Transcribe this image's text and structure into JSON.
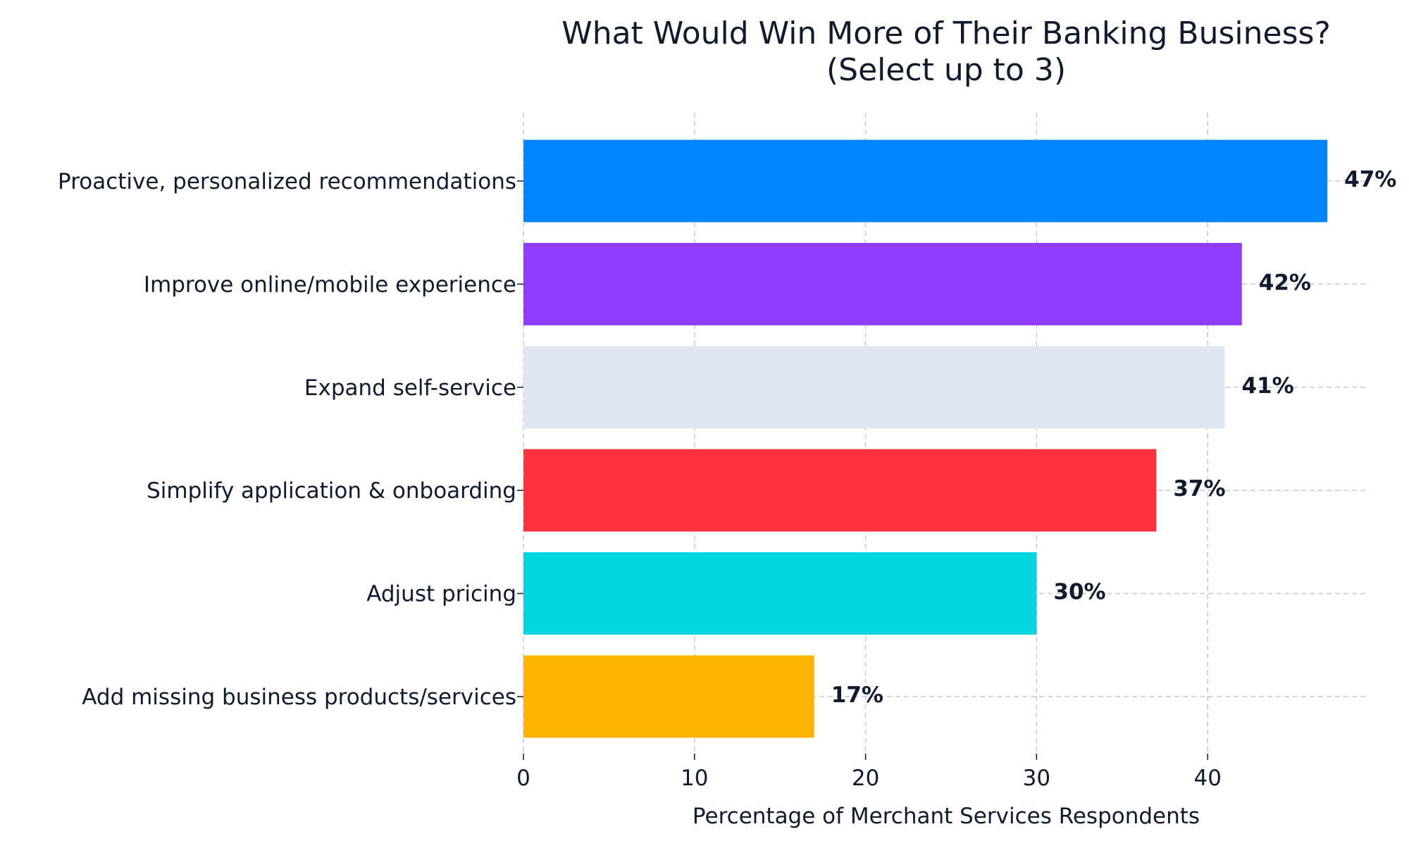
{
  "chart_data": {
    "type": "bar",
    "orientation": "horizontal",
    "title": [
      "What Would Win More of Their Banking Business?",
      "(Select up to 3)"
    ],
    "categories": [
      "Proactive, personalized recommendations",
      "Improve online/mobile experience",
      "Expand self-service",
      "Simplify application & onboarding",
      "Adjust pricing",
      "Add missing business products/services"
    ],
    "values": [
      47,
      42,
      41,
      37,
      30,
      17
    ],
    "value_labels": [
      "47%",
      "42%",
      "41%",
      "37%",
      "30%",
      "17%"
    ],
    "colors": [
      "#0284fe",
      "#8e3cfe",
      "#e1e7f0",
      "#fe333d",
      "#00d5e0",
      "#feb600"
    ],
    "xlabel": "Percentage of Merchant Services Respondents",
    "ylabel": "",
    "xlim": [
      0,
      49.3
    ],
    "xticks": [
      0,
      10,
      20,
      30,
      40
    ],
    "grid": true,
    "legend": "none"
  }
}
